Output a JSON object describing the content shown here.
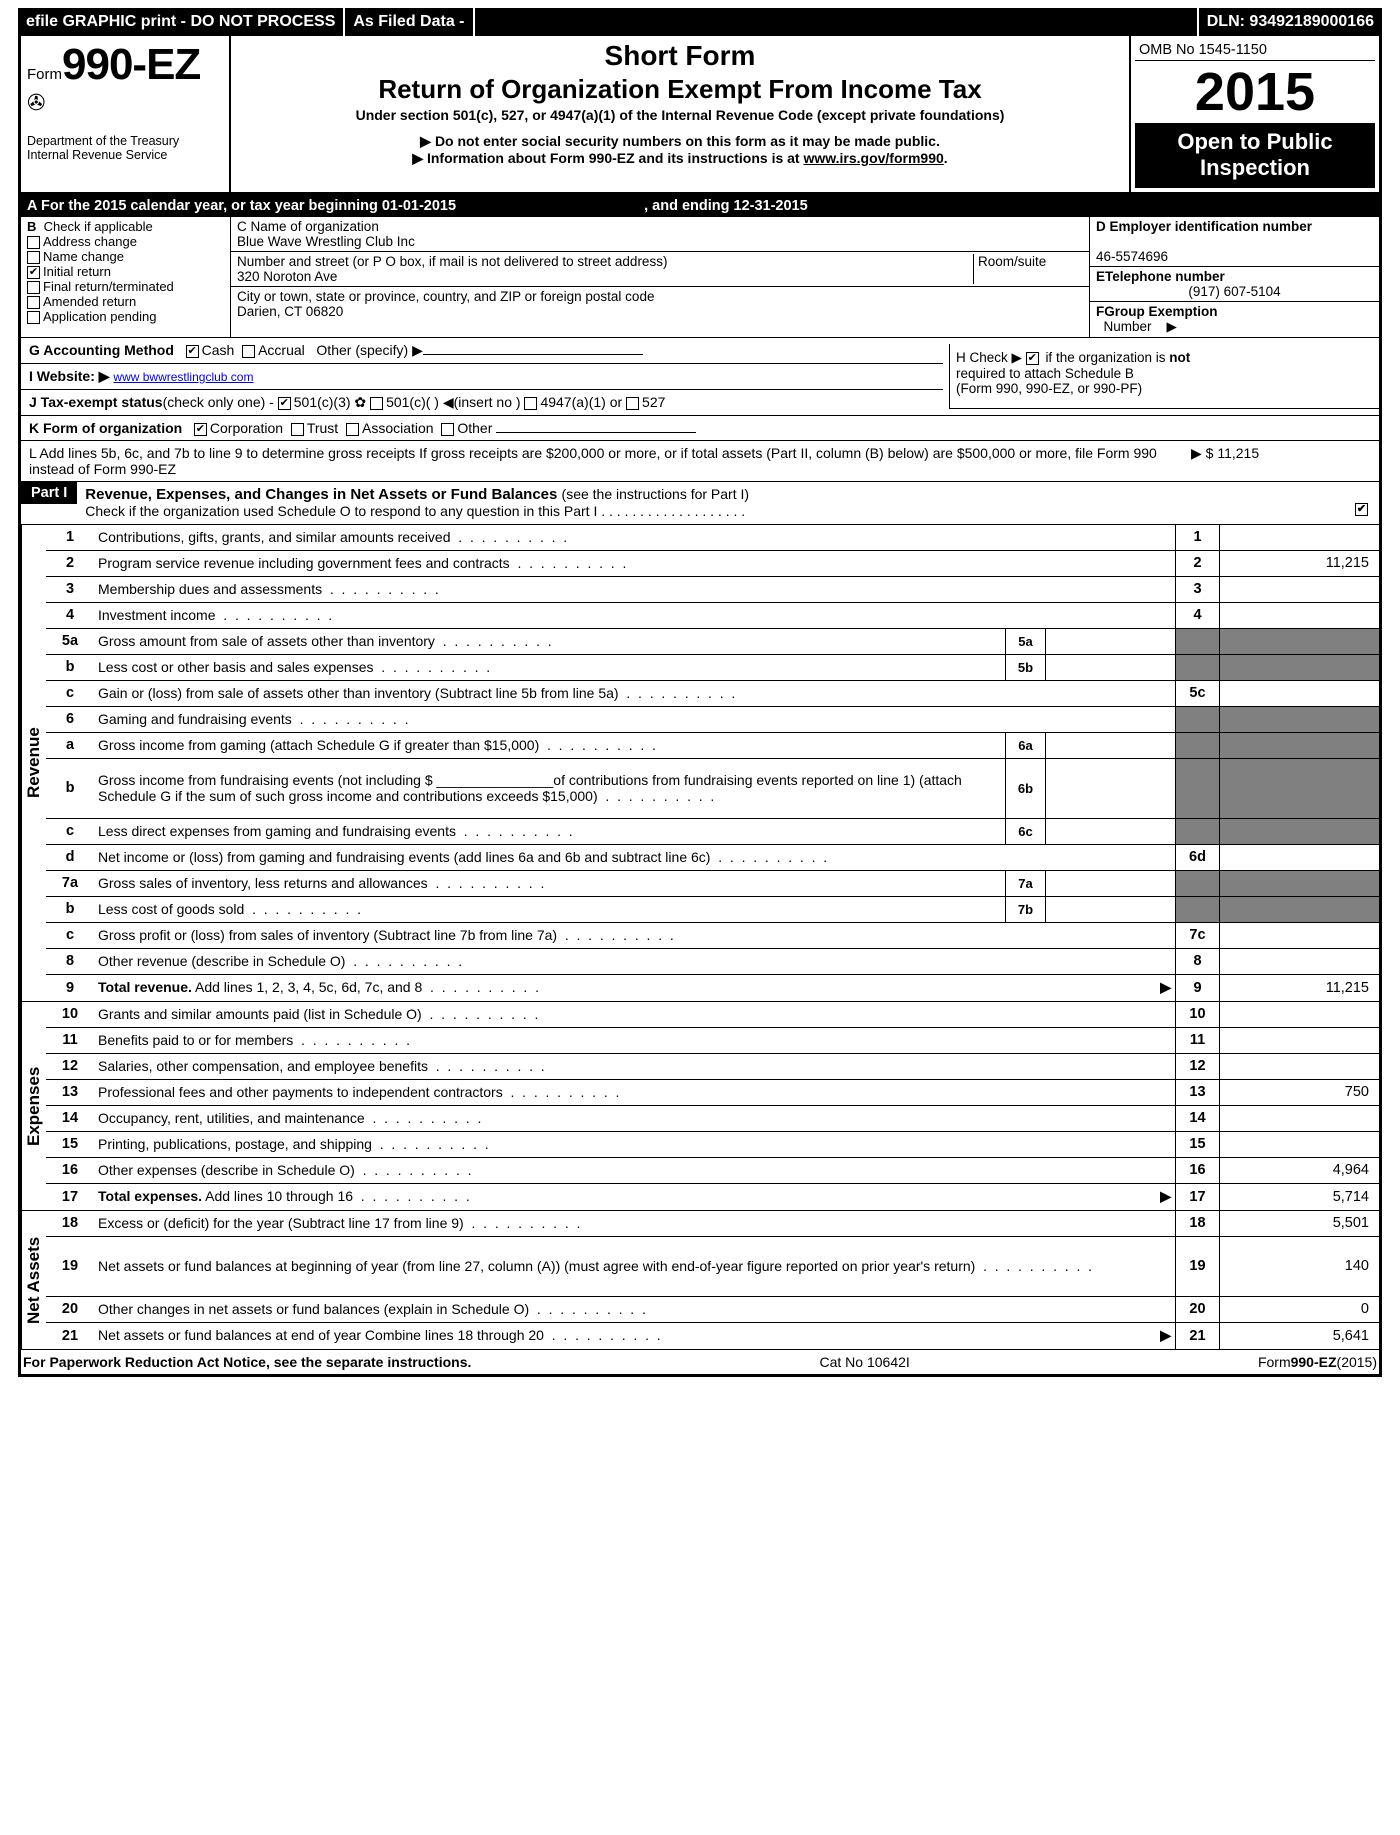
{
  "topbar": {
    "left1": "efile GRAPHIC print - DO NOT PROCESS",
    "left2": "As Filed Data -",
    "dln_label": "DLN:",
    "dln": "93492189000166"
  },
  "header": {
    "form_prefix": "Form",
    "form_number": "990-EZ",
    "dept1": "Department of the Treasury",
    "dept2": "Internal Revenue Service",
    "title1": "Short Form",
    "title2": "Return of Organization Exempt From Income Tax",
    "subtitle": "Under section 501(c), 527, or 4947(a)(1) of the Internal Revenue Code (except private foundations)",
    "note1": "Do not enter social security numbers on this form as it may be made public.",
    "note2a": "Information about Form 990-EZ and its instructions is at ",
    "note2b": "www.irs.gov/form990",
    "note2c": ".",
    "omb": "OMB No 1545-1150",
    "year": "2015",
    "open1": "Open to Public",
    "open2": "Inspection"
  },
  "lineA": {
    "prefix": "A  For the 2015 calendar year, or tax year beginning ",
    "begin": "01-01-2015",
    "mid": " , and ending ",
    "end": "12-31-2015"
  },
  "boxB": {
    "title": "B",
    "sub": "Check if applicable",
    "items": [
      "Address change",
      "Name change",
      "Initial return",
      "Final return/terminated",
      "Amended return",
      "Application pending"
    ],
    "checked_index": 2
  },
  "boxC": {
    "label1": "C Name of organization",
    "name": "Blue Wave Wrestling Club Inc",
    "label2": "Number and street (or P  O  box, if mail is not delivered to street address)",
    "room": "Room/suite",
    "street": "320 Noroton Ave",
    "label3": "City or town, state or province, country, and ZIP or foreign postal code",
    "city": "Darien, CT 06820"
  },
  "boxD": {
    "label": "D Employer identification number",
    "value": "46-5574696"
  },
  "boxE": {
    "label": "ETelephone number",
    "value": "(917) 607-5104"
  },
  "boxF": {
    "label": "FGroup Exemption",
    "label2": "Number",
    "arrow": "▶"
  },
  "lineG": {
    "label": "G Accounting Method",
    "cash": "Cash",
    "accrual": "Accrual",
    "other": "Other (specify) ▶"
  },
  "lineH": {
    "text1": "H  Check ▶",
    "text2": "if the organization is ",
    "not": "not",
    "text3": " required to attach Schedule B",
    "text4": "(Form 990, 990-EZ, or 990-PF)"
  },
  "lineI": {
    "label": "I Website: ▶",
    "url": "www bwwrestlingclub com"
  },
  "lineJ": {
    "label": "J Tax-exempt status",
    "sub": "(check only one) -",
    "opts": [
      "501(c)(3)",
      "501(c)( )",
      "(insert no )",
      "4947(a)(1) or",
      "527"
    ]
  },
  "lineK": {
    "label": "K Form of organization",
    "opts": [
      "Corporation",
      "Trust",
      "Association",
      "Other"
    ]
  },
  "lineL": {
    "text": "L Add lines 5b, 6c, and 7b to line 9 to determine gross receipts If gross receipts are $200,000 or more, or if total assets (Part II, column (B) below) are $500,000 or more, file Form 990 instead of Form 990-EZ",
    "arrow": "▶",
    "amount": "$ 11,215"
  },
  "partI": {
    "label": "Part I",
    "title": "Revenue, Expenses, and Changes in Net Assets or Fund Balances ",
    "title_sub": "(see the instructions for Part I)",
    "check_line": "Check if the organization used Schedule O to respond to any question in this Part I  .  .  .  .  .  .  .  .  .  .  .  .  .  .  .  .  .  .  ."
  },
  "sections": {
    "revenue": "Revenue",
    "expenses": "Expenses",
    "netassets": "Net Assets"
  },
  "lines": [
    {
      "n": "1",
      "d": "Contributions, gifts, grants, and similar amounts received",
      "box": "1",
      "amt": ""
    },
    {
      "n": "2",
      "d": "Program service revenue including government fees and contracts",
      "box": "2",
      "amt": "11,215"
    },
    {
      "n": "3",
      "d": "Membership dues and assessments",
      "box": "3",
      "amt": ""
    },
    {
      "n": "4",
      "d": "Investment income",
      "box": "4",
      "amt": ""
    },
    {
      "n": "5a",
      "d": "Gross amount from sale of assets other than inventory",
      "mid": "5a",
      "shade": true
    },
    {
      "n": "b",
      "d": "Less  cost or other basis and sales expenses",
      "mid": "5b",
      "shade": true
    },
    {
      "n": "c",
      "d": "Gain or (loss) from sale of assets other than inventory (Subtract line 5b from line 5a)",
      "box": "5c",
      "amt": ""
    },
    {
      "n": "6",
      "d": "Gaming and fundraising events",
      "shade_all": true
    },
    {
      "n": "a",
      "d": "Gross income from gaming (attach Schedule G if greater than $15,000)",
      "mid": "6a",
      "shade": true,
      "thin": true
    },
    {
      "n": "b",
      "d": "Gross income from fundraising events (not including $ _______________of contributions from fundraising events reported on line 1) (attach Schedule G if the sum of such gross income and contributions exceeds $15,000)",
      "mid": "6b",
      "shade": true,
      "tall": true
    },
    {
      "n": "c",
      "d": "Less  direct expenses from gaming and fundraising events",
      "mid": "6c",
      "shade": true
    },
    {
      "n": "d",
      "d": "Net income or (loss) from gaming and fundraising events (add lines 6a and 6b and subtract line 6c)",
      "box": "6d",
      "amt": ""
    },
    {
      "n": "7a",
      "d": "Gross sales of inventory, less returns and allowances",
      "mid": "7a",
      "shade": true
    },
    {
      "n": "b",
      "d": "Less  cost of goods sold",
      "mid": "7b",
      "shade": true
    },
    {
      "n": "c",
      "d": "Gross profit or (loss) from sales of inventory (Subtract line 7b from line 7a)",
      "box": "7c",
      "amt": ""
    },
    {
      "n": "8",
      "d": "Other revenue (describe in Schedule O)",
      "box": "8",
      "amt": ""
    },
    {
      "n": "9",
      "d": "Total revenue. Add lines 1, 2, 3, 4, 5c, 6d, 7c, and 8",
      "box": "9",
      "amt": "11,215",
      "bold": true,
      "arrow": true
    },
    {
      "n": "10",
      "d": "Grants and similar amounts paid (list in Schedule O)",
      "box": "10",
      "amt": ""
    },
    {
      "n": "11",
      "d": "Benefits paid to or for members",
      "box": "11",
      "amt": ""
    },
    {
      "n": "12",
      "d": "Salaries, other compensation, and employee benefits",
      "box": "12",
      "amt": ""
    },
    {
      "n": "13",
      "d": "Professional fees and other payments to independent contractors",
      "box": "13",
      "amt": "750"
    },
    {
      "n": "14",
      "d": "Occupancy, rent, utilities, and maintenance",
      "box": "14",
      "amt": ""
    },
    {
      "n": "15",
      "d": "Printing, publications, postage, and shipping",
      "box": "15",
      "amt": ""
    },
    {
      "n": "16",
      "d": "Other expenses (describe in Schedule O)",
      "box": "16",
      "amt": "4,964"
    },
    {
      "n": "17",
      "d": "Total expenses. Add lines 10 through 16",
      "box": "17",
      "amt": "5,714",
      "bold": true,
      "arrow": true
    },
    {
      "n": "18",
      "d": "Excess or (deficit) for the year (Subtract line 17 from line 9)",
      "box": "18",
      "amt": "5,501"
    },
    {
      "n": "19",
      "d": "Net assets or fund balances at beginning of year (from line 27, column (A)) (must agree with end-of-year figure reported on prior year's return)",
      "box": "19",
      "amt": "140",
      "tall": true,
      "shade_top": true
    },
    {
      "n": "20",
      "d": "Other changes in net assets or fund balances (explain in Schedule O)",
      "box": "20",
      "amt": "0"
    },
    {
      "n": "21",
      "d": "Net assets or fund balances at end of year Combine lines 18 through 20",
      "box": "21",
      "amt": "5,641",
      "arrow": true
    }
  ],
  "footer": {
    "left": "For Paperwork Reduction Act Notice, see the separate instructions.",
    "mid": "Cat No 10642I",
    "right_a": "Form",
    "right_b": "990-EZ",
    "right_c": "(2015)"
  }
}
